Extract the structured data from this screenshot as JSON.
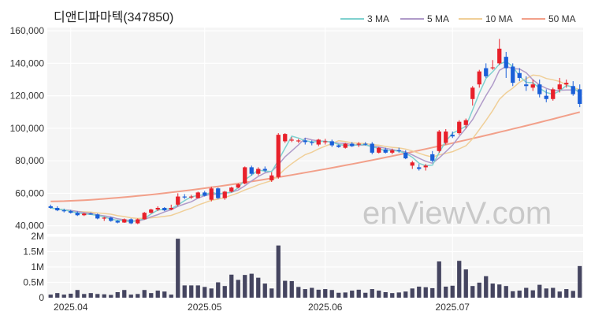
{
  "title": "디앤디파마텍(347850)",
  "watermark": "enViewV.com",
  "legend": [
    {
      "label": "3 MA",
      "color": "#7fd1cf"
    },
    {
      "label": "5 MA",
      "color": "#b09bc9"
    },
    {
      "label": "10 MA",
      "color": "#f0cf98"
    },
    {
      "label": "50 MA",
      "color": "#f2a08a"
    }
  ],
  "colors": {
    "up": "#e8202a",
    "down": "#1a5fd8",
    "volume": "#454560",
    "panel_bg": "#f5f5f5"
  },
  "chart_data": [
    {
      "type": "candlestick",
      "title": "디앤디파마텍(347850)",
      "y_ticks": [
        "40,000",
        "60,000",
        "80,000",
        "100,000",
        "120,000",
        "140,000",
        "160,000"
      ],
      "ylim": [
        35000,
        162000
      ],
      "x_ticks": [
        {
          "index": 3,
          "label": "2025.04"
        },
        {
          "index": 23,
          "label": "2025.05"
        },
        {
          "index": 41,
          "label": "2025.06"
        },
        {
          "index": 60,
          "label": "2025.07"
        }
      ],
      "x_count": 80,
      "candles": [
        [
          52000,
          53000,
          50500,
          51000
        ],
        [
          51000,
          52000,
          49000,
          49500
        ],
        [
          49500,
          50500,
          48200,
          49000
        ],
        [
          49000,
          49800,
          47500,
          48000
        ],
        [
          48000,
          48800,
          46000,
          46500
        ],
        [
          46500,
          48000,
          46000,
          47500
        ],
        [
          47500,
          48200,
          46800,
          47000
        ],
        [
          47000,
          47500,
          44000,
          44500
        ],
        [
          44500,
          45500,
          43000,
          45000
        ],
        [
          45000,
          45500,
          42500,
          43000
        ],
        [
          43000,
          43500,
          41500,
          42000
        ],
        [
          42000,
          44500,
          41800,
          44000
        ],
        [
          44000,
          44500,
          41000,
          41500
        ],
        [
          41500,
          44500,
          41000,
          44000
        ],
        [
          44000,
          48500,
          43800,
          48000
        ],
        [
          48000,
          50500,
          47500,
          50000
        ],
        [
          50000,
          52000,
          49000,
          51000
        ],
        [
          51000,
          51500,
          49000,
          49500
        ],
        [
          50000,
          53000,
          49500,
          51000
        ],
        [
          53000,
          60000,
          52000,
          58000
        ],
        [
          58000,
          59500,
          56500,
          57500
        ],
        [
          57500,
          59000,
          56500,
          58000
        ],
        [
          57000,
          61000,
          56800,
          60500
        ],
        [
          60500,
          61500,
          58000,
          58500
        ],
        [
          56000,
          64000,
          55000,
          63000
        ],
        [
          63000,
          63500,
          56500,
          57000
        ],
        [
          57000,
          61500,
          56000,
          61000
        ],
        [
          61000,
          64000,
          60500,
          63500
        ],
        [
          63500,
          66000,
          63000,
          65500
        ],
        [
          66000,
          76500,
          65500,
          76000
        ],
        [
          76000,
          77000,
          71000,
          72000
        ],
        [
          72000,
          76000,
          71000,
          75000
        ],
        [
          75000,
          76500,
          73000,
          74000
        ],
        [
          68000,
          73000,
          67000,
          71000
        ],
        [
          70000,
          97000,
          69000,
          96000
        ],
        [
          92000,
          97000,
          91000,
          96500
        ],
        [
          93000,
          94500,
          91500,
          93000
        ],
        [
          92000,
          93500,
          91000,
          92500
        ],
        [
          92500,
          94000,
          90000,
          91500
        ],
        [
          91500,
          92500,
          89500,
          91000
        ],
        [
          90000,
          93500,
          89000,
          93000
        ],
        [
          92000,
          93500,
          90000,
          92000
        ],
        [
          92000,
          93000,
          88500,
          89500
        ],
        [
          89500,
          90000,
          88000,
          88500
        ],
        [
          88000,
          91000,
          87500,
          90500
        ],
        [
          90500,
          91500,
          88500,
          89000
        ],
        [
          90000,
          91500,
          88500,
          90500
        ],
        [
          90500,
          91500,
          89500,
          90000
        ],
        [
          90500,
          91500,
          84000,
          85000
        ],
        [
          85000,
          88500,
          84500,
          88000
        ],
        [
          87000,
          88000,
          84500,
          85000
        ],
        [
          85000,
          87500,
          84000,
          86500
        ],
        [
          86500,
          88000,
          85000,
          86000
        ],
        [
          85000,
          86500,
          81000,
          81500
        ],
        [
          77000,
          80000,
          75000,
          79000
        ],
        [
          76000,
          78000,
          74000,
          75000
        ],
        [
          76000,
          78000,
          74000,
          77000
        ],
        [
          84000,
          86000,
          79000,
          80000
        ],
        [
          86000,
          99000,
          85000,
          98000
        ],
        [
          91000,
          99500,
          90000,
          98000
        ],
        [
          96000,
          98000,
          94000,
          95000
        ],
        [
          97000,
          105000,
          96000,
          104000
        ],
        [
          102000,
          106000,
          100000,
          105000
        ],
        [
          118000,
          126000,
          114000,
          125000
        ],
        [
          127000,
          136000,
          125000,
          135000
        ],
        [
          137000,
          140000,
          131000,
          132000
        ],
        [
          137000,
          142000,
          136000,
          137500
        ],
        [
          140000,
          155000,
          139000,
          149000
        ],
        [
          144000,
          147000,
          131000,
          137000
        ],
        [
          138000,
          140000,
          126000,
          128000
        ],
        [
          134000,
          137000,
          129000,
          131000
        ],
        [
          127000,
          132000,
          123000,
          126000
        ],
        [
          125000,
          130000,
          123000,
          127000
        ],
        [
          127000,
          130000,
          119000,
          121000
        ],
        [
          120000,
          124000,
          116000,
          118000
        ],
        [
          118000,
          125000,
          117000,
          124000
        ],
        [
          124000,
          131000,
          122000,
          127000
        ],
        [
          127000,
          130000,
          125000,
          128000
        ],
        [
          126000,
          129000,
          120000,
          121000
        ],
        [
          124000,
          127000,
          113000,
          115000
        ]
      ],
      "ma50_endpoints": [
        55000,
        110000
      ],
      "volume": {
        "y_ticks": [
          "0",
          "0.5M",
          "1M",
          "1.5M",
          "2M"
        ],
        "ylim": [
          0,
          2000000
        ],
        "values": [
          100000,
          150000,
          100000,
          130000,
          250000,
          120000,
          150000,
          120000,
          110000,
          90000,
          180000,
          250000,
          100000,
          120000,
          250000,
          150000,
          230000,
          200000,
          100000,
          1920000,
          400000,
          400000,
          400000,
          350000,
          300000,
          500000,
          380000,
          750000,
          580000,
          740000,
          780000,
          650000,
          460000,
          300000,
          1700000,
          550000,
          540000,
          350000,
          280000,
          320000,
          260000,
          280000,
          250000,
          160000,
          170000,
          230000,
          260000,
          160000,
          280000,
          230000,
          180000,
          150000,
          170000,
          200000,
          300000,
          360000,
          340000,
          310000,
          1180000,
          360000,
          390000,
          1200000,
          920000,
          380000,
          490000,
          700000,
          460000,
          430000,
          380000,
          210000,
          230000,
          320000,
          240000,
          420000,
          300000,
          320000,
          200000,
          280000,
          220000,
          1030000
        ]
      }
    }
  ]
}
